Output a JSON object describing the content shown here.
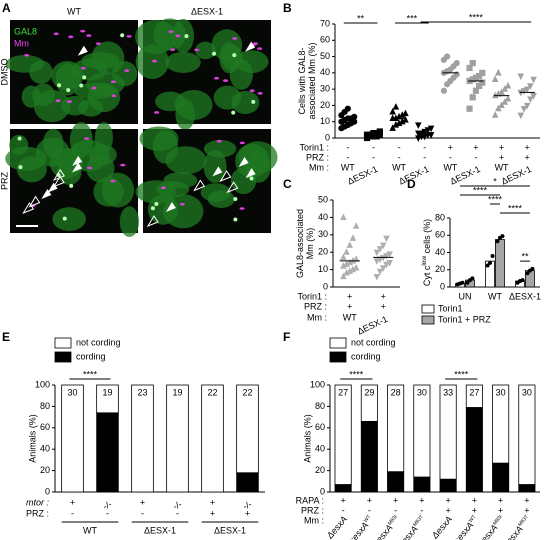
{
  "panel_a": {
    "panel_label": "A",
    "columns": [
      "WT",
      "ΔESX-1"
    ],
    "rows": [
      "DMSO",
      "PRZ"
    ],
    "channels": [
      {
        "name": "GAL8",
        "color": "#3ee03e"
      },
      {
        "name": "Mm",
        "color": "#f040f0"
      }
    ]
  },
  "chart_data": [
    {
      "panel_label": "B",
      "type": "dot",
      "ylabel": [
        "Cells with GAL8-",
        "associated Mm (%)"
      ],
      "ylim": [
        0,
        70
      ],
      "yticks": [
        0,
        10,
        20,
        30,
        40,
        50,
        60,
        70
      ],
      "groups": [
        {
          "marker": "circle",
          "color": "#000000",
          "values": [
            6,
            7,
            8,
            9,
            10,
            10,
            11,
            12,
            12,
            13,
            14,
            16,
            18
          ],
          "mean": 11
        },
        {
          "marker": "square",
          "color": "#000000",
          "values": [
            0,
            1,
            1,
            1,
            2,
            2,
            2,
            3,
            3,
            4
          ],
          "mean": 2
        },
        {
          "marker": "triangle",
          "color": "#000000",
          "values": [
            6,
            8,
            9,
            10,
            11,
            12,
            12,
            13,
            14,
            15,
            16,
            19
          ],
          "mean": 12
        },
        {
          "marker": "triangle-down",
          "color": "#000000",
          "values": [
            0,
            1,
            1,
            2,
            2,
            3,
            3,
            4,
            5,
            6,
            8
          ],
          "mean": 3
        },
        {
          "marker": "circle",
          "color": "#a0a0a0",
          "values": [
            29,
            33,
            35,
            37,
            39,
            40,
            41,
            42,
            44,
            46,
            48,
            50
          ],
          "mean": 40
        },
        {
          "marker": "square",
          "color": "#a0a0a0",
          "values": [
            18,
            25,
            29,
            32,
            34,
            35,
            36,
            37,
            38,
            40,
            43,
            46
          ],
          "mean": 35
        },
        {
          "marker": "triangle",
          "color": "#a0a0a0",
          "values": [
            14,
            18,
            20,
            22,
            24,
            26,
            27,
            28,
            30,
            32,
            36,
            40
          ],
          "mean": 26
        },
        {
          "marker": "triangle-down",
          "color": "#a0a0a0",
          "values": [
            14,
            18,
            20,
            24,
            26,
            28,
            29,
            30,
            32,
            36,
            38
          ],
          "mean": 28
        }
      ],
      "rows": [
        {
          "label": "Torin1 :",
          "values": [
            "-",
            "-",
            "-",
            "-",
            "+",
            "+",
            "+",
            "+"
          ]
        },
        {
          "label": "PRZ :",
          "values": [
            "-",
            "-",
            "-",
            "-",
            "-",
            "-",
            "+",
            "+"
          ]
        },
        {
          "label": "Mm :",
          "values": [
            "WT",
            "ΔESX-1",
            "WT",
            "ΔESX-1",
            "WT",
            "ΔESX-1",
            "WT",
            "ΔESX-1"
          ]
        }
      ],
      "significance": [
        "**",
        "***",
        "****"
      ]
    },
    {
      "panel_label": "C",
      "type": "dot",
      "ylabel": [
        "GAL8-associated",
        "Mm (%)"
      ],
      "ylim": [
        0,
        50
      ],
      "yticks": [
        0,
        10,
        20,
        30,
        40,
        50
      ],
      "groups": [
        {
          "marker": "triangle",
          "color": "#b0b0b0",
          "values": [
            6,
            8,
            9,
            10,
            11,
            12,
            13,
            14,
            15,
            16,
            17,
            20,
            24,
            28,
            35,
            40
          ],
          "mean": 15
        },
        {
          "marker": "triangle-down",
          "color": "#b0b0b0",
          "values": [
            6,
            9,
            11,
            13,
            14,
            15,
            16,
            17,
            18,
            19,
            20,
            22,
            24,
            28
          ],
          "mean": 17
        }
      ],
      "rows": [
        {
          "label": "Torin1 :",
          "values": [
            "+",
            "+"
          ]
        },
        {
          "label": "PRZ :",
          "values": [
            "+",
            "+"
          ]
        },
        {
          "label": "Mm :",
          "values": [
            "WT",
            "ΔESX-1"
          ]
        }
      ],
      "significance": []
    },
    {
      "panel_label": "D",
      "type": "grouped_bar",
      "ylabel": {
        "main": "Cyt c",
        "sup": "low",
        "tail": " cells (%)"
      },
      "ylim": [
        0,
        80
      ],
      "yticks": [
        0,
        20,
        40,
        60,
        80
      ],
      "categories": [
        "UN",
        "WT",
        "ΔESX-1"
      ],
      "series": [
        {
          "name": "Torin1",
          "color": "#ffffff",
          "values": [
            4,
            30,
            7
          ],
          "points": [
            [
              3,
              4,
              5
            ],
            [
              25,
              28,
              36
            ],
            [
              5,
              7,
              8
            ]
          ]
        },
        {
          "name": "Torin1 + PRZ",
          "color": "#a6a6a6",
          "values": [
            8,
            55,
            19
          ],
          "points": [
            [
              5,
              8,
              10
            ],
            [
              53,
              57,
              59
            ],
            [
              16,
              19,
              21
            ]
          ]
        }
      ],
      "significance": [
        "*",
        "****",
        "****",
        "****",
        "**"
      ]
    },
    {
      "panel_label": "E",
      "type": "stacked_bar",
      "ylabel": "Animals (%)",
      "ylim": [
        0,
        100
      ],
      "yticks": [
        0,
        20,
        40,
        60,
        80,
        100
      ],
      "series": [
        {
          "name": "not cording",
          "color": "#ffffff",
          "values": [
            100,
            26,
            100,
            100,
            100,
            82
          ]
        },
        {
          "name": "cording",
          "color": "#000000",
          "values": [
            0,
            74,
            0,
            0,
            0,
            18
          ]
        }
      ],
      "n": [
        30,
        19,
        23,
        19,
        22,
        22
      ],
      "rows": [
        {
          "label": "mtor :",
          "values": [
            "+",
            "-/-",
            "+",
            "-/-",
            "+",
            "-/-"
          ]
        },
        {
          "label": "PRZ :",
          "values": [
            "-",
            "-",
            "-",
            "-",
            "+",
            "+"
          ]
        }
      ],
      "groups": [
        "WT",
        "ΔESX-1",
        "ΔESX-1"
      ],
      "significance": [
        "****"
      ]
    },
    {
      "panel_label": "F",
      "type": "stacked_bar",
      "ylabel": "Animals (%)",
      "ylim": [
        0,
        100
      ],
      "yticks": [
        0,
        20,
        40,
        60,
        80,
        100
      ],
      "series": [
        {
          "name": "not cording",
          "color": "#ffffff",
          "values": [
            93,
            34,
            81,
            86,
            88,
            21,
            73,
            93
          ]
        },
        {
          "name": "cording",
          "color": "#000000",
          "values": [
            7,
            66,
            19,
            14,
            12,
            79,
            27,
            7
          ]
        }
      ],
      "n": [
        27,
        29,
        28,
        30,
        33,
        27,
        30,
        30
      ],
      "rows": [
        {
          "label": "RAPA :",
          "values": [
            "+",
            "+",
            "+",
            "+",
            "+",
            "+",
            "+",
            "+"
          ]
        },
        {
          "label": "PRZ :",
          "values": [
            "-",
            "-",
            "-",
            "-",
            "+",
            "+",
            "+",
            "+"
          ]
        }
      ],
      "mm": {
        "label": "Mm :",
        "values": [
          {
            "text": "ΔesxA"
          },
          {
            "text": "::esxA",
            "sup": "WT"
          },
          {
            "text": "::esxA",
            "sup": "M83I"
          },
          {
            "text": "::esxA",
            "sup": "M93T"
          },
          {
            "text": "ΔesxA"
          },
          {
            "text": "::esxA",
            "sup": "WT"
          },
          {
            "text": "::esxA",
            "sup": "M83I"
          },
          {
            "text": "::esxA",
            "sup": "M93T"
          }
        ]
      },
      "significance": [
        "****",
        "****"
      ]
    }
  ]
}
